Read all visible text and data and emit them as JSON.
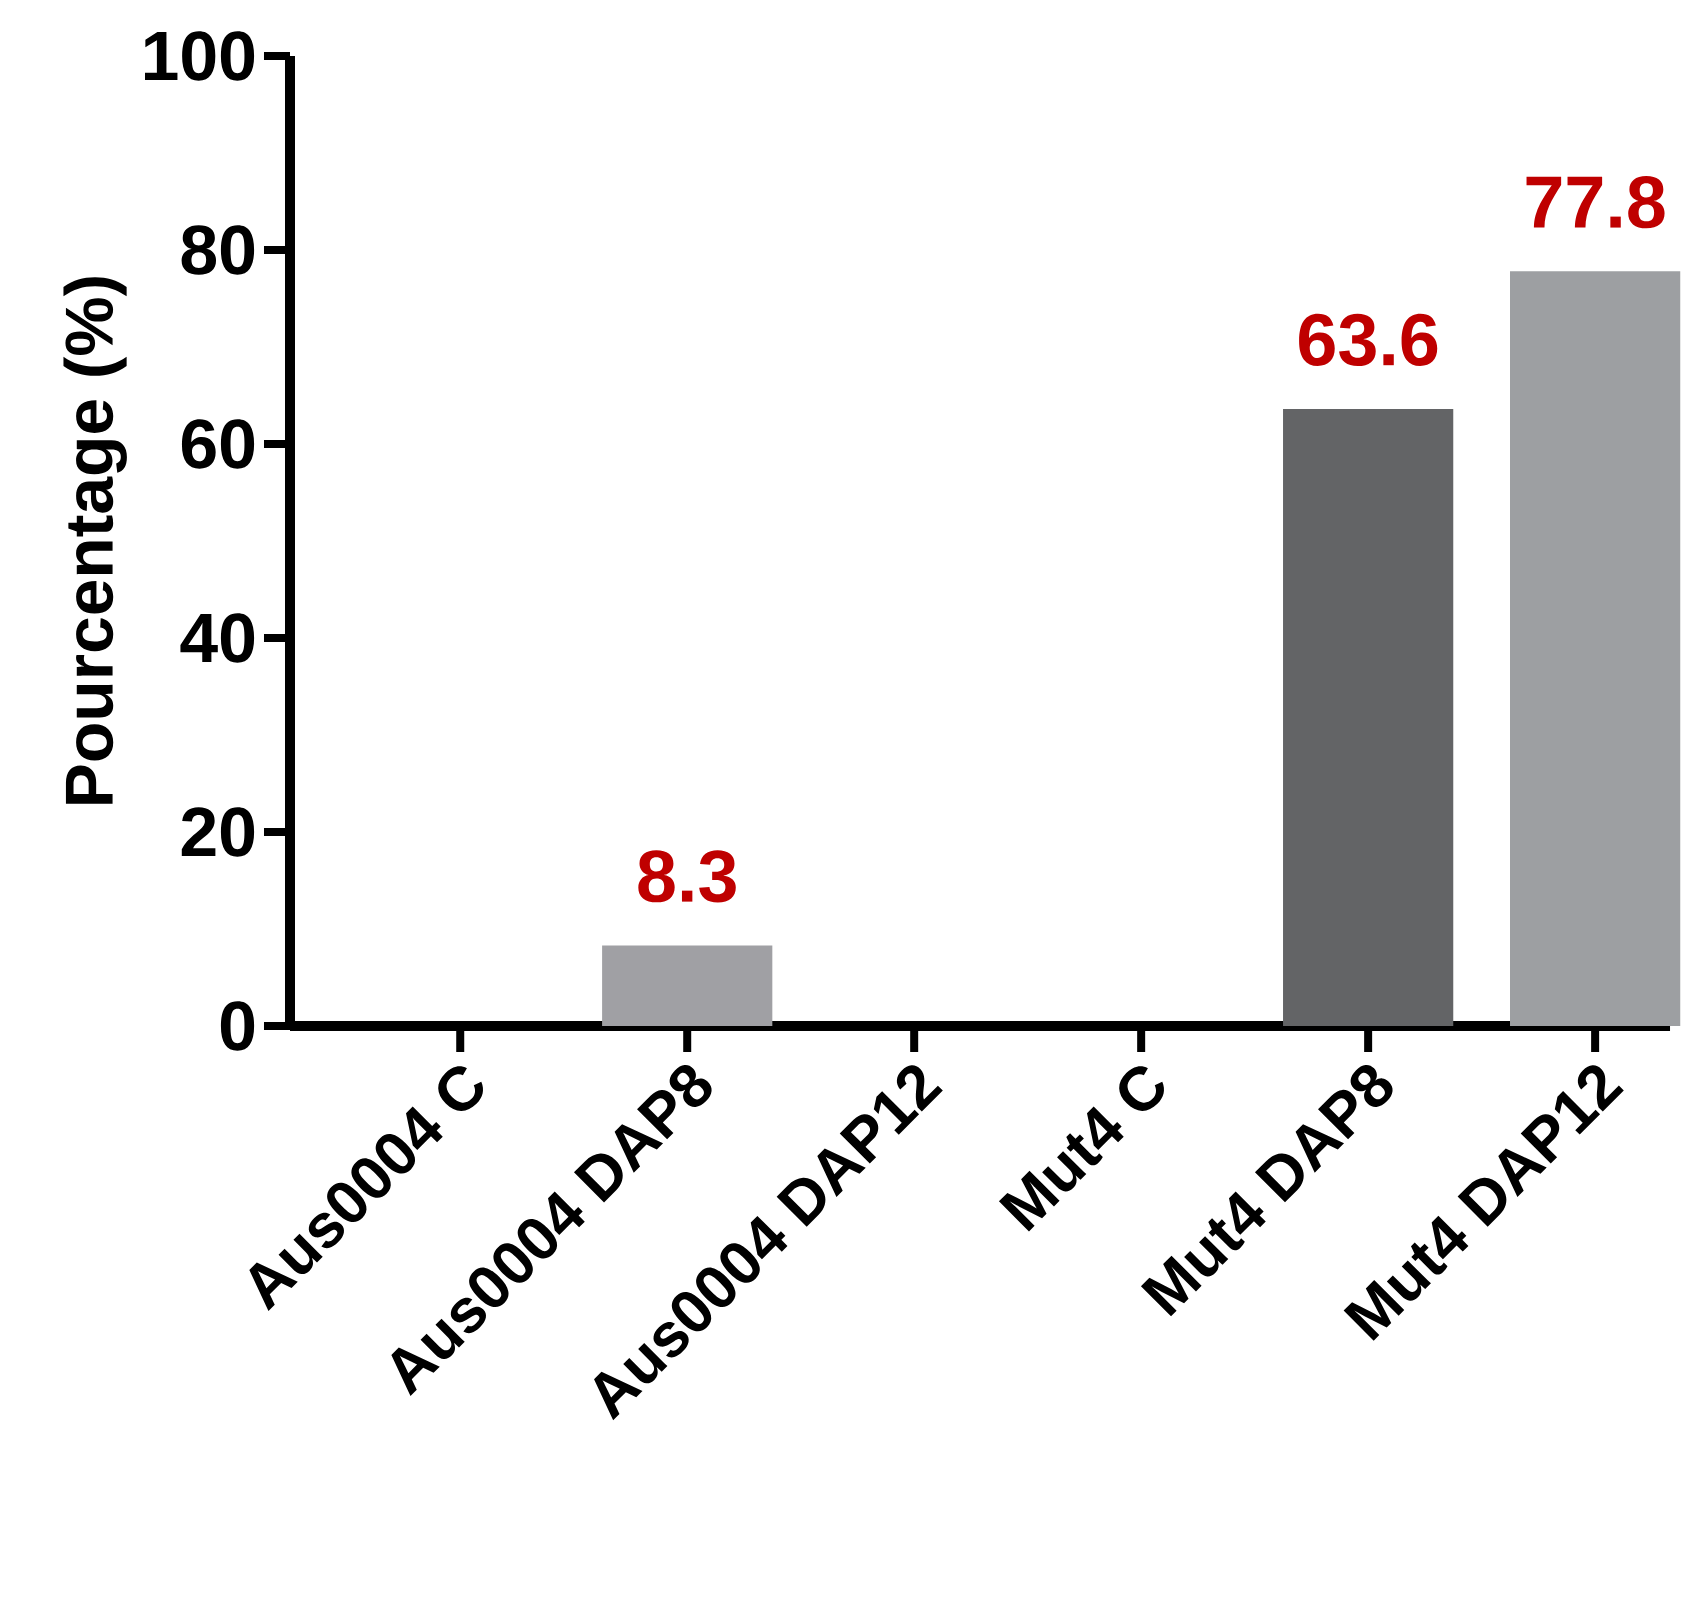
{
  "chart_data": {
    "type": "bar",
    "ylabel": "Pourcentage (%)",
    "categories": [
      "Aus0004 C",
      "Aus0004 DAP8",
      "Aus0004 DAP12",
      "Mut4 C",
      "Mut4 DAP8",
      "Mut4 DAP12"
    ],
    "values": [
      0,
      8.3,
      0,
      0,
      63.6,
      77.8
    ],
    "colors": [
      "#a0a0a4",
      "#a0a0a4",
      "#a0a0a4",
      "#636466",
      "#636466",
      "#9d9fa2"
    ],
    "value_labels": [
      null,
      "8.3",
      null,
      null,
      "63.6",
      "77.8"
    ],
    "ylim": [
      0,
      100
    ],
    "yticks": [
      0,
      20,
      40,
      60,
      80,
      100
    ],
    "grid": false
  }
}
